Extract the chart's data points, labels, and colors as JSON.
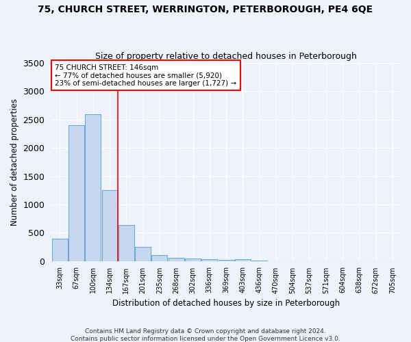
{
  "title1": "75, CHURCH STREET, WERRINGTON, PETERBOROUGH, PE4 6QE",
  "title2": "Size of property relative to detached houses in Peterborough",
  "xlabel": "Distribution of detached houses by size in Peterborough",
  "ylabel": "Number of detached properties",
  "categories": [
    "33sqm",
    "67sqm",
    "100sqm",
    "134sqm",
    "167sqm",
    "201sqm",
    "235sqm",
    "268sqm",
    "302sqm",
    "336sqm",
    "369sqm",
    "403sqm",
    "436sqm",
    "470sqm",
    "504sqm",
    "537sqm",
    "571sqm",
    "604sqm",
    "638sqm",
    "672sqm",
    "705sqm"
  ],
  "values": [
    400,
    2400,
    2600,
    1250,
    640,
    250,
    110,
    60,
    40,
    30,
    25,
    30,
    5,
    0,
    0,
    0,
    0,
    0,
    0,
    0,
    0
  ],
  "bar_color": "#c5d8f0",
  "bar_edge_color": "#6aaad4",
  "red_line_x": 3.5,
  "annotation_line1": "75 CHURCH STREET: 146sqm",
  "annotation_line2": "← 77% of detached houses are smaller (5,920)",
  "annotation_line3": "23% of semi-detached houses are larger (1,727) →",
  "background_color": "#eef2fb",
  "ylim": [
    0,
    3500
  ],
  "yticks": [
    0,
    500,
    1000,
    1500,
    2000,
    2500,
    3000,
    3500
  ],
  "footer1": "Contains HM Land Registry data © Crown copyright and database right 2024.",
  "footer2": "Contains public sector information licensed under the Open Government Licence v3.0."
}
